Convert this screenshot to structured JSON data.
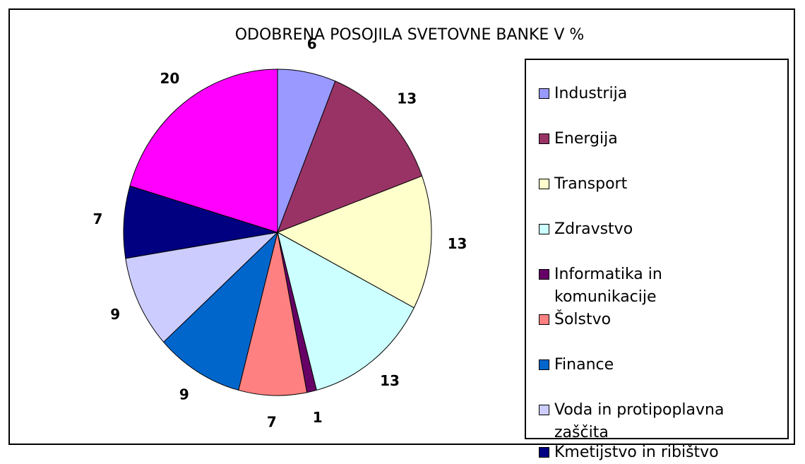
{
  "chart_data": {
    "type": "pie",
    "title": "ODOBRENA POSOJILA SVETOVNE BANKE V %",
    "categories": [
      "Industrija",
      "Energija",
      "Transport",
      "Zdravstvo",
      "Informatika in komunikacije",
      "Šolstvo",
      "Finance",
      "Voda in protipoplavna zaščita",
      "Kmetijstvo in ribištvo",
      null
    ],
    "values": [
      6,
      13,
      13,
      13,
      1,
      7,
      9,
      9,
      7,
      20
    ],
    "colors": [
      "#9999ff",
      "#993366",
      "#ffffcc",
      "#ccffff",
      "#660066",
      "#ff8080",
      "#0066cc",
      "#ccccff",
      "#000080",
      "#ff00ff"
    ]
  }
}
